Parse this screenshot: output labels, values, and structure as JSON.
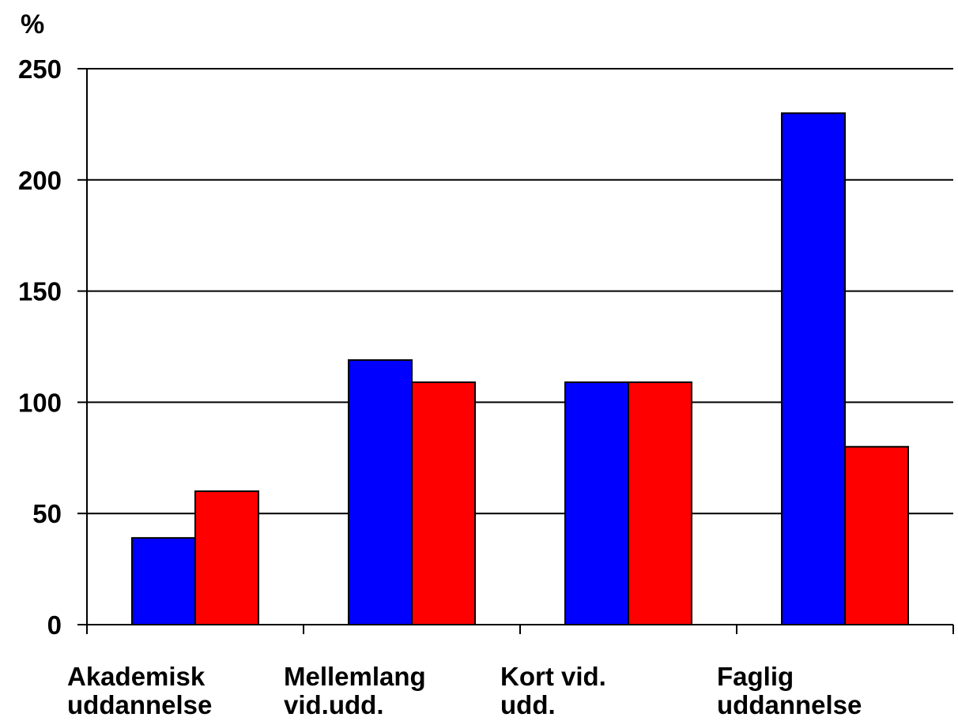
{
  "chart_data": {
    "type": "bar",
    "ylabel": "%",
    "ylim": [
      0,
      250
    ],
    "yticks": [
      0,
      50,
      100,
      150,
      200,
      250
    ],
    "grid": true,
    "legend": "none",
    "categories": [
      [
        "Akademisk",
        "uddannelse"
      ],
      [
        "Mellemlang",
        "vid.udd."
      ],
      [
        "Kort vid.",
        "udd."
      ],
      [
        "Faglig",
        "uddannelse"
      ]
    ],
    "series": [
      {
        "color": "#0000ff",
        "values": [
          39,
          119,
          109,
          230
        ]
      },
      {
        "color": "#ff0000",
        "values": [
          60,
          109,
          109,
          80
        ]
      }
    ]
  }
}
